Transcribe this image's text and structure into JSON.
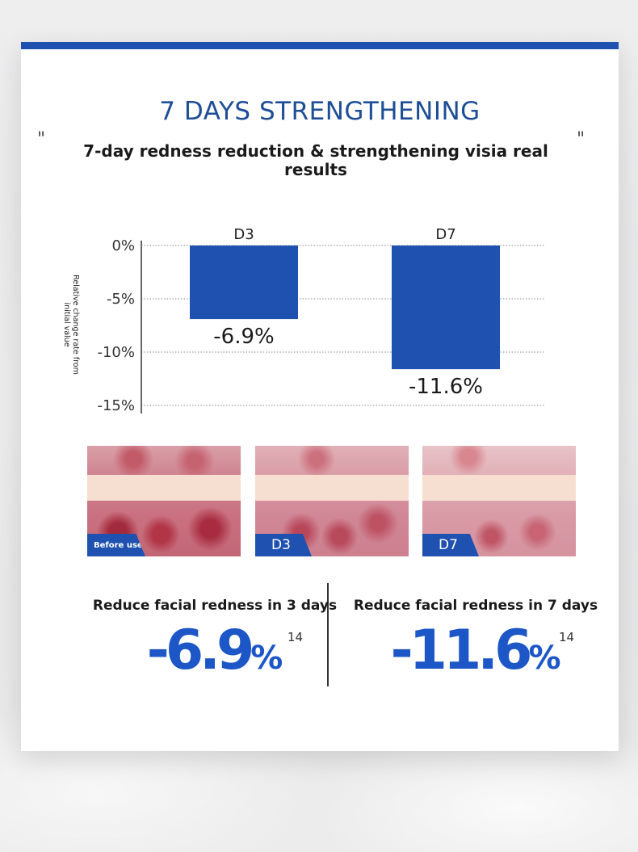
{
  "colors": {
    "accent": "#1f51b0",
    "title": "#1e4e96",
    "stat": "#1d56c6"
  },
  "header": {
    "title": "7 DAYS STRENGTHENING",
    "subtitle": "7-day redness reduction & strengthening visia real results",
    "quote_open": "\"",
    "quote_close": "\""
  },
  "chart_data": {
    "type": "bar",
    "categories": [
      "D3",
      "D7"
    ],
    "values": [
      -6.9,
      -11.6
    ],
    "value_labels": [
      "-6.9%",
      "-11.6%"
    ],
    "ylabel": "Relative change rate from initial value",
    "ylim": [
      -15,
      0
    ],
    "yticks": [
      0,
      -5,
      -10,
      -15
    ],
    "ytick_labels": [
      "0%",
      "-5%",
      "-10%",
      "-15%"
    ],
    "grid": "horizontal dotted",
    "bar_color": "#1f51b0",
    "category_position": "top"
  },
  "photos": [
    {
      "label": "Before use",
      "name": "before-use"
    },
    {
      "label": "D3",
      "name": "d3"
    },
    {
      "label": "D7",
      "name": "d7"
    }
  ],
  "stats": [
    {
      "label": "Reduce facial redness in 3 days",
      "value": "-6.9",
      "unit": "%",
      "superscript": "14"
    },
    {
      "label": "Reduce facial redness in 7 days",
      "value": "-11.6",
      "unit": "%",
      "superscript": "14"
    }
  ]
}
